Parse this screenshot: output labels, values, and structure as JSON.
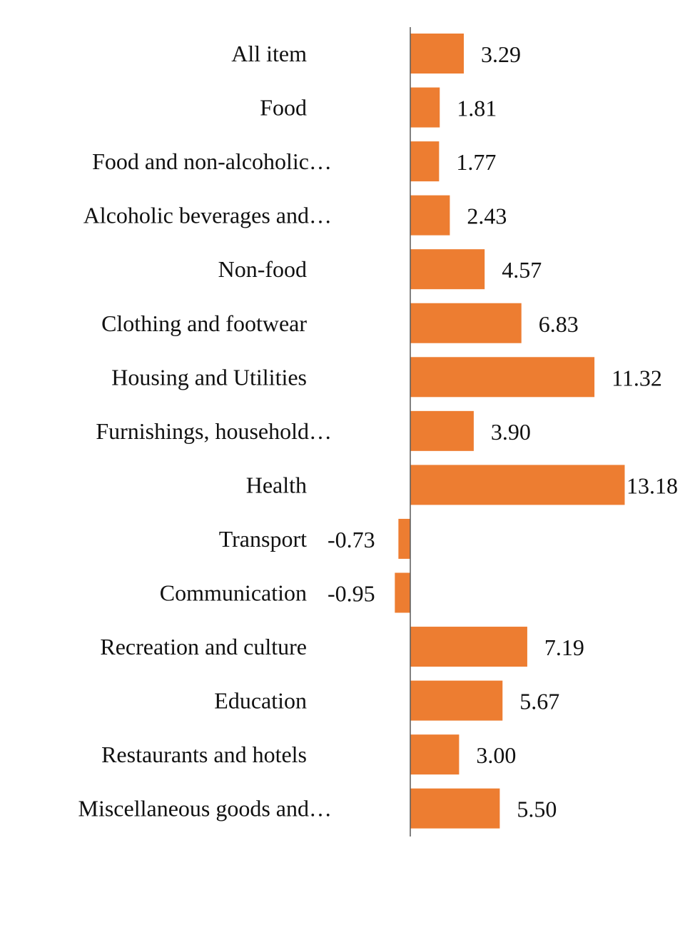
{
  "chart_data": {
    "type": "bar",
    "orientation": "horizontal",
    "title": "",
    "xlabel": "",
    "ylabel": "",
    "categories": [
      "All item",
      "Food",
      "Food and non-alcoholic…",
      "Alcoholic beverages and…",
      "Non-food",
      "Clothing and footwear",
      "Housing and Utilities",
      "Furnishings, household…",
      "Health",
      "Transport",
      "Communication",
      "Recreation and culture",
      "Education",
      "Restaurants and hotels",
      "Miscellaneous goods and…"
    ],
    "values": [
      3.29,
      1.81,
      1.77,
      2.43,
      4.57,
      6.83,
      11.32,
      3.9,
      13.18,
      -0.73,
      -0.95,
      7.19,
      5.67,
      3.0,
      5.5
    ],
    "value_labels": [
      "3.29",
      "1.81",
      "1.77",
      "2.43",
      "4.57",
      "6.83",
      "11.32",
      "3.90",
      "13.18",
      "-0.73",
      "-0.95",
      "7.19",
      "5.67",
      "3.00",
      "5.50"
    ],
    "bar_color": "#ED7D31",
    "grid": false,
    "legend": "none",
    "xlim": [
      -1,
      14
    ]
  }
}
